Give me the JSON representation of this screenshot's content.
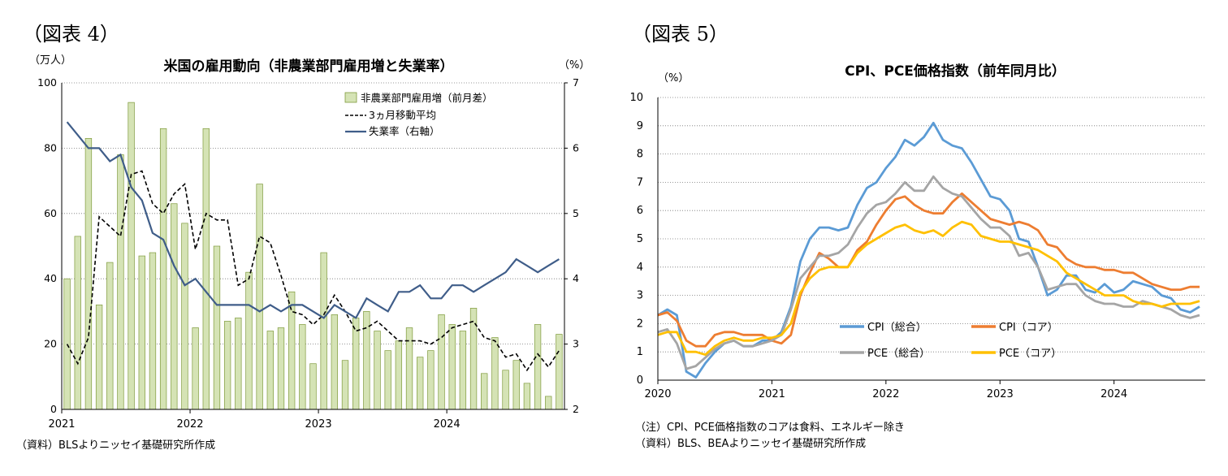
{
  "figure4": {
    "label": "（図表 4）",
    "source": "（資料）BLSよりニッセイ基礎研究所作成",
    "chart_data": {
      "type": "bar-line",
      "title": "米国の雇用動向（非農業部門雇用増と失業率）",
      "left_unit": "（万人）",
      "right_unit": "（%）",
      "ylim": [
        0,
        100
      ],
      "y_ticks": [
        0,
        20,
        40,
        60,
        80,
        100
      ],
      "y2lim": [
        2,
        7
      ],
      "y2_ticks": [
        2,
        3,
        4,
        5,
        6,
        7
      ],
      "x_ticks": [
        "2021",
        "2022",
        "2023",
        "2024"
      ],
      "x_tick_index": [
        0,
        12,
        24,
        36
      ],
      "legend": [
        "非農業部門雇用増（前月差）",
        "3ヵ月移動平均",
        "失業率（右軸）"
      ],
      "series": [
        {
          "name": "非農業部門雇用増（前月差）",
          "kind": "bar",
          "axis": "left",
          "values": [
            40,
            53,
            83,
            32,
            45,
            78,
            94,
            47,
            48,
            86,
            63,
            57,
            25,
            86,
            50,
            27,
            28,
            42,
            69,
            24,
            25,
            36,
            26,
            14,
            48,
            29,
            15,
            28,
            30,
            24,
            18,
            21,
            25,
            16,
            18,
            29,
            26,
            24,
            31,
            11,
            22,
            12,
            15,
            8,
            26,
            4,
            23
          ]
        },
        {
          "name": "3ヵ月移動平均",
          "kind": "line",
          "axis": "left",
          "values": [
            20,
            14,
            22,
            59,
            56,
            53,
            72,
            73,
            63,
            60,
            66,
            69,
            49,
            60,
            58,
            58,
            38,
            40,
            53,
            51,
            41,
            30,
            29,
            26,
            29,
            35,
            30,
            24,
            25,
            27,
            24,
            21,
            21,
            21,
            20,
            22,
            25,
            26,
            27,
            22,
            21,
            16,
            17,
            12,
            17,
            13,
            18
          ]
        },
        {
          "name": "失業率（右軸）",
          "kind": "line",
          "axis": "right",
          "values": [
            6.4,
            6.2,
            6.0,
            6.0,
            5.8,
            5.9,
            5.4,
            5.2,
            4.7,
            4.6,
            4.2,
            3.9,
            4.0,
            3.8,
            3.6,
            3.6,
            3.6,
            3.6,
            3.5,
            3.6,
            3.5,
            3.6,
            3.6,
            3.5,
            3.4,
            3.6,
            3.5,
            3.4,
            3.7,
            3.6,
            3.5,
            3.8,
            3.8,
            3.9,
            3.7,
            3.7,
            3.9,
            3.9,
            3.8,
            3.9,
            4.0,
            4.1,
            4.3,
            4.2,
            4.1,
            4.2,
            4.3
          ]
        }
      ]
    }
  },
  "figure5": {
    "label": "（図表 5）",
    "notes": [
      "（注）CPI、PCE価格指数のコアは食料、エネルギー除き",
      "（資料）BLS、BEAよりニッセイ基礎研究所作成"
    ],
    "chart_data": {
      "type": "line",
      "title": "CPI、PCE価格指数（前年同月比）",
      "y_unit": "（%）",
      "ylim": [
        0,
        10
      ],
      "y_ticks": [
        0,
        1,
        2,
        3,
        4,
        5,
        6,
        7,
        8,
        9,
        10
      ],
      "x_ticks": [
        "2020",
        "2021",
        "2022",
        "2023",
        "2024"
      ],
      "x_tick_index": [
        0,
        12,
        24,
        36,
        48
      ],
      "series": [
        {
          "name": "CPI（総合）",
          "color": "#5b9bd5",
          "values": [
            2.3,
            2.5,
            2.3,
            0.3,
            0.1,
            0.6,
            1.0,
            1.3,
            1.4,
            1.2,
            1.2,
            1.4,
            1.4,
            1.7,
            2.6,
            4.2,
            5.0,
            5.4,
            5.4,
            5.3,
            5.4,
            6.2,
            6.8,
            7.0,
            7.5,
            7.9,
            8.5,
            8.3,
            8.6,
            9.1,
            8.5,
            8.3,
            8.2,
            7.7,
            7.1,
            6.5,
            6.4,
            6.0,
            5.0,
            4.9,
            4.0,
            3.0,
            3.2,
            3.7,
            3.7,
            3.2,
            3.1,
            3.4,
            3.1,
            3.2,
            3.5,
            3.4,
            3.3,
            3.0,
            2.9,
            2.5,
            2.4,
            2.6
          ]
        },
        {
          "name": "CPI（コア）",
          "color": "#ed7d31",
          "values": [
            2.3,
            2.4,
            2.1,
            1.4,
            1.2,
            1.2,
            1.6,
            1.7,
            1.7,
            1.6,
            1.6,
            1.6,
            1.4,
            1.3,
            1.6,
            3.0,
            3.8,
            4.5,
            4.3,
            4.0,
            4.0,
            4.6,
            4.9,
            5.5,
            6.0,
            6.4,
            6.5,
            6.2,
            6.0,
            5.9,
            5.9,
            6.3,
            6.6,
            6.3,
            6.0,
            5.7,
            5.6,
            5.5,
            5.6,
            5.5,
            5.3,
            4.8,
            4.7,
            4.3,
            4.1,
            4.0,
            4.0,
            3.9,
            3.9,
            3.8,
            3.8,
            3.6,
            3.4,
            3.3,
            3.2,
            3.2,
            3.3,
            3.3
          ]
        },
        {
          "name": "PCE（総合）",
          "color": "#a5a5a5",
          "values": [
            1.7,
            1.8,
            1.3,
            0.4,
            0.5,
            0.8,
            1.1,
            1.3,
            1.4,
            1.2,
            1.2,
            1.3,
            1.4,
            1.6,
            2.5,
            3.6,
            4.0,
            4.4,
            4.4,
            4.5,
            4.8,
            5.4,
            5.9,
            6.2,
            6.3,
            6.6,
            7.0,
            6.7,
            6.7,
            7.2,
            6.8,
            6.6,
            6.5,
            6.1,
            5.7,
            5.4,
            5.4,
            5.1,
            4.4,
            4.5,
            4.0,
            3.2,
            3.3,
            3.4,
            3.4,
            3.0,
            2.8,
            2.7,
            2.7,
            2.6,
            2.6,
            2.8,
            2.7,
            2.6,
            2.5,
            2.3,
            2.2,
            2.3
          ]
        },
        {
          "name": "PCE（コア）",
          "color": "#ffc000",
          "values": [
            1.6,
            1.7,
            1.7,
            1.0,
            1.0,
            0.9,
            1.2,
            1.4,
            1.5,
            1.4,
            1.4,
            1.5,
            1.5,
            1.6,
            2.0,
            3.1,
            3.6,
            3.9,
            4.0,
            4.0,
            4.0,
            4.5,
            4.8,
            5.0,
            5.2,
            5.4,
            5.5,
            5.3,
            5.2,
            5.3,
            5.1,
            5.4,
            5.6,
            5.5,
            5.1,
            5.0,
            4.9,
            4.9,
            4.8,
            4.7,
            4.6,
            4.4,
            4.2,
            3.8,
            3.6,
            3.4,
            3.2,
            3.0,
            3.0,
            3.0,
            2.8,
            2.7,
            2.7,
            2.6,
            2.7,
            2.7,
            2.7,
            2.8
          ]
        }
      ]
    }
  }
}
